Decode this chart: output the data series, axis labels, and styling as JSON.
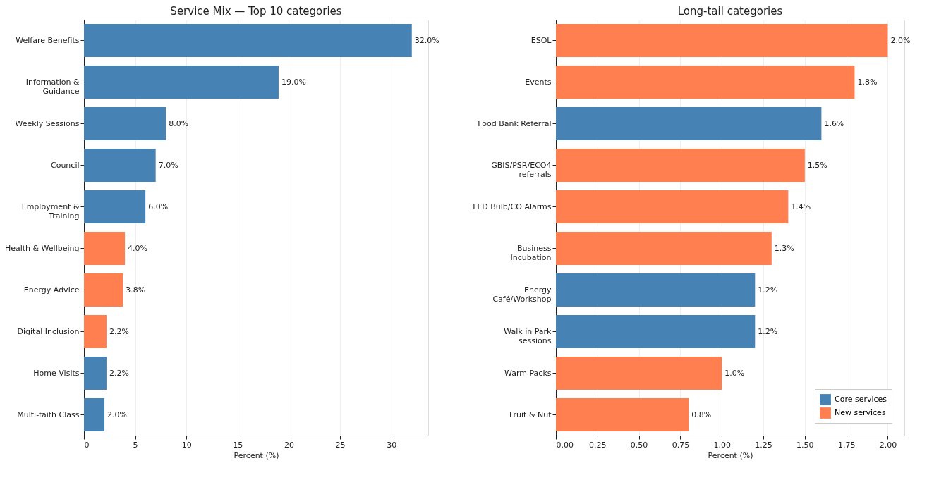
{
  "chart_data": [
    {
      "type": "bar",
      "orientation": "horizontal",
      "title": "Service Mix — Top 10 categories",
      "xlabel": "Percent (%)",
      "categories": [
        "Welfare Benefits",
        "Information &\nGuidance",
        "Weekly Sessions",
        "Council",
        "Employment &\nTraining",
        "Health & Wellbeing",
        "Energy Advice",
        "Digital Inclusion",
        "Home Visits",
        "Multi-faith Class"
      ],
      "values": [
        32.0,
        19.0,
        8.0,
        7.0,
        6.0,
        4.0,
        3.8,
        2.2,
        2.2,
        2.0
      ],
      "colors": [
        "#4682b4",
        "#4682b4",
        "#4682b4",
        "#4682b4",
        "#4682b4",
        "#ff7f50",
        "#ff7f50",
        "#ff7f50",
        "#4682b4",
        "#4682b4"
      ],
      "value_labels": [
        "32.0%",
        "19.0%",
        "8.0%",
        "7.0%",
        "6.0%",
        "4.0%",
        "3.8%",
        "2.2%",
        "2.2%",
        "2.0%"
      ],
      "xlim": [
        0,
        33.6
      ],
      "xticks": [
        0,
        5,
        10,
        15,
        20,
        25,
        30
      ],
      "grid": "x"
    },
    {
      "type": "bar",
      "orientation": "horizontal",
      "title": "Long-tail categories",
      "xlabel": "Percent (%)",
      "categories": [
        "ESOL",
        "Events",
        "Food Bank Referral",
        "GBIS/PSR/ECO4\nreferrals",
        "LED Bulb/CO Alarms",
        "Business\nIncubation",
        "Energy\nCafé/Workshop",
        "Walk in Park\nsessions",
        "Warm Packs",
        "Fruit & Nut"
      ],
      "series": [
        {
          "name": "Core services",
          "color": "#4682b4",
          "values": [
            null,
            null,
            1.6,
            null,
            null,
            null,
            1.2,
            1.2,
            null,
            null
          ],
          "value_labels": [
            null,
            null,
            "1.6%",
            null,
            null,
            null,
            "1.2%",
            "1.2%",
            null,
            null
          ]
        },
        {
          "name": "New services",
          "color": "#ff7f50",
          "values": [
            2.0,
            1.8,
            null,
            1.5,
            1.4,
            1.3,
            null,
            null,
            1.0,
            0.8
          ],
          "value_labels": [
            "2.0%",
            "1.8%",
            null,
            "1.5%",
            "1.4%",
            "1.3%",
            null,
            null,
            "1.0%",
            "0.8%"
          ]
        }
      ],
      "xlim": [
        0,
        2.1
      ],
      "xticks": [
        {
          "value": 0,
          "label": "0.00"
        },
        {
          "value": 0.25,
          "label": "0.25"
        },
        {
          "value": 0.5,
          "label": "0.50"
        },
        {
          "value": 0.75,
          "label": "0.75"
        },
        {
          "value": 1.0,
          "label": "1.00"
        },
        {
          "value": 1.25,
          "label": "1.25"
        },
        {
          "value": 1.5,
          "label": "1.50"
        },
        {
          "value": 1.75,
          "label": "1.75"
        },
        {
          "value": 2.0,
          "label": "2.00"
        }
      ],
      "grid": "x",
      "legend": "bottom right"
    }
  ]
}
